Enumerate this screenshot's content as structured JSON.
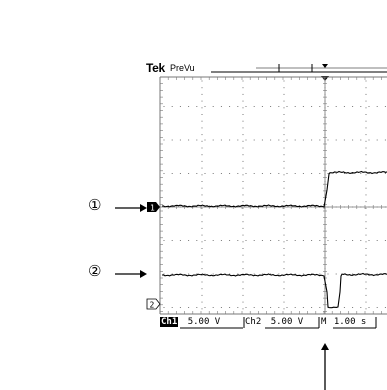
{
  "header": {
    "brand": "Tek",
    "mode": "PreVu"
  },
  "callouts": [
    {
      "number": "①"
    },
    {
      "number": "②"
    }
  ],
  "channel_markers": {
    "ch1": "1",
    "ch2": "2"
  },
  "readout": {
    "ch1_label": "Ch1",
    "ch1_scale": "5.00 V",
    "ch2_label": "Ch2",
    "ch2_scale": "5.00 V",
    "time_prefix": "M",
    "time_scale": "1.00 s"
  },
  "colors": {
    "trace": "#000000",
    "grid": "#777777",
    "background": "#ffffff"
  }
}
